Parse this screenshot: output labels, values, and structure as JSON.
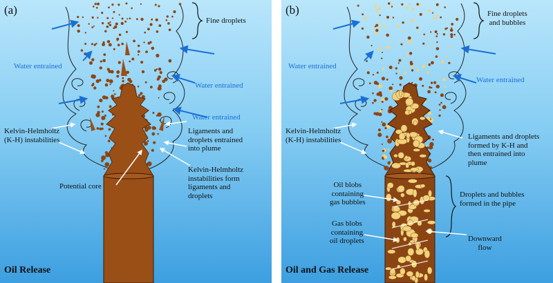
{
  "panel_a": {
    "tag": "(a)",
    "title": "Oil Release",
    "labels": {
      "fine_droplets": "Fine droplets",
      "water1": "Water entrained",
      "water2": "Water entrained",
      "water3": "Water entrained",
      "kh": [
        "Kelvin-Helmholtz",
        "(K-H) instabilities"
      ],
      "ligaments": [
        "Ligaments and",
        "droplets entrained",
        "into plume"
      ],
      "kh_form": [
        "Kelvin-Helmholtz",
        "instabilities form",
        "ligaments and",
        "droplets"
      ],
      "core": "Potential core"
    }
  },
  "panel_b": {
    "tag": "(b)",
    "title": "Oil and Gas Release",
    "labels": {
      "fine": [
        "Fine droplets",
        "and bubbles"
      ],
      "water1": "Water entrained",
      "water2": "Water entrained",
      "kh": [
        "Kelvin-Helmholtz",
        "(K-H) instabilities"
      ],
      "ligaments": [
        "Ligaments and droplets",
        "formed by K-H and",
        "then entrained into",
        "plume"
      ],
      "oil_blobs": [
        "Oil blobs",
        "containing",
        "gas bubbles"
      ],
      "gas_blobs": [
        "Gas blobs",
        "containing",
        "oil droplets"
      ],
      "pipe": [
        "Droplets and bubbles",
        "formed in the pipe"
      ],
      "downward": [
        "Downward",
        "flow"
      ]
    }
  },
  "colors": {
    "oil": "#8b4513",
    "gas": "#f3d27a",
    "water_arrow": "#1a6fd6",
    "sky_top": "#b9e6fb",
    "sky_bottom": "#3d9fe0"
  }
}
